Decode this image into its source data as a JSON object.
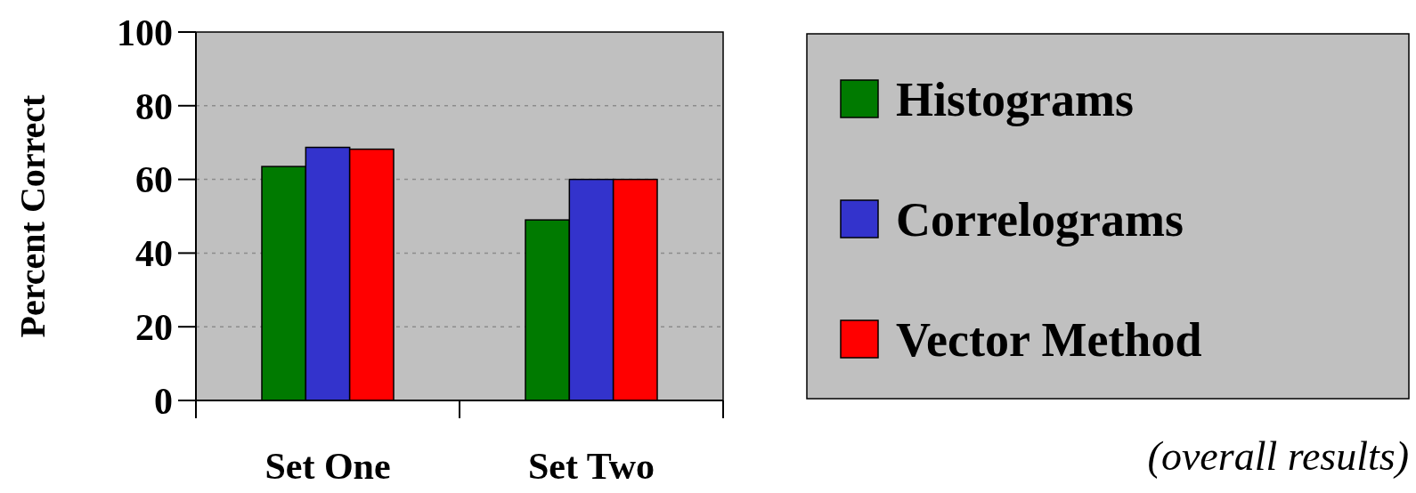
{
  "chart_data": {
    "type": "bar",
    "ylabel": "Percent Correct",
    "categories": [
      "Set One",
      "Set Two"
    ],
    "series": [
      {
        "name": "Histograms",
        "color": "#007a00",
        "values": [
          63.5,
          49
        ]
      },
      {
        "name": "Correlograms",
        "color": "#3333cc",
        "values": [
          68.7,
          60
        ]
      },
      {
        "name": "Vector Method",
        "color": "#ff0000",
        "values": [
          68.2,
          60
        ]
      }
    ],
    "ylim": [
      0,
      100
    ],
    "yticks": [
      0,
      20,
      40,
      60,
      80,
      100
    ],
    "grid": "y",
    "legend": "right",
    "annotations": [
      "(overall results)"
    ]
  }
}
